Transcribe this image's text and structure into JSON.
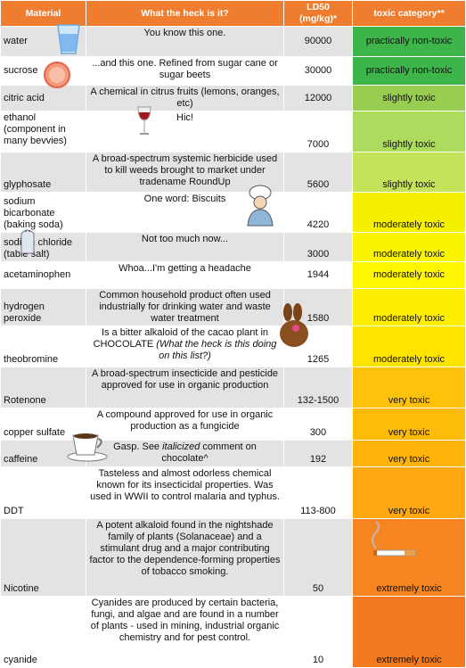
{
  "header": [
    "Material",
    "What the heck is it?",
    "LD50 (mg/kg)*",
    "toxic category**"
  ],
  "rows": [
    {
      "material": "water",
      "description": [
        {
          "text": "You know this one."
        }
      ],
      "ld50": 90000,
      "category": "practically non-toxic",
      "color": "#3db54a"
    },
    {
      "material": "sucrose",
      "description": [
        {
          "text": "...and this one. Refined from sugar cane or sugar beets"
        }
      ],
      "ld50": 30000,
      "category": "practically non-toxic",
      "color": "#3db54a"
    },
    {
      "material": "citric acid",
      "description": [
        {
          "text": "A chemical in citrus fruits (lemons, oranges, etc)"
        }
      ],
      "ld50": 12000,
      "category": "slightly toxic",
      "color": "#98cd52"
    },
    {
      "material": "ethanol (component in many bevvies)",
      "description": [
        {
          "text": "Hic!"
        }
      ],
      "ld50": 7000,
      "category": "slightly toxic",
      "color": "#addb5e"
    },
    {
      "material": "glyphosate",
      "description": [
        {
          "text": "A broad-spectrum systemic herbicide used to kill weeds brought to market under tradename RoundUp"
        }
      ],
      "ld50": 5600,
      "category": "slightly toxic",
      "color": "#c4e25a"
    },
    {
      "material": "sodium bicarbonate (baking soda)",
      "description": [
        {
          "text": "One word: Biscuits"
        }
      ],
      "ld50": 4220,
      "category": "moderately toxic",
      "color": "#f4f000"
    },
    {
      "material": "sodium chloride (table salt)",
      "description": [
        {
          "text": "Not too much now..."
        }
      ],
      "ld50": 3000,
      "category": "moderately toxic",
      "color": "#fbf400"
    },
    {
      "material": "acetaminophen",
      "description": [
        {
          "text": "Whoa...I'm getting a headache"
        }
      ],
      "ld50": 1944,
      "category": "moderately toxic",
      "color": "#fff600"
    },
    {
      "material": "hydrogen peroxide",
      "description": [
        {
          "text": "Common household product often used industrially for drinking water and waste water treatment"
        }
      ],
      "ld50": 1580,
      "category": "moderately toxic",
      "color": "#ffee00"
    },
    {
      "material": "theobromine",
      "description": [
        {
          "text": "Is a bitter alkaloid of the cacao plant in CHOCOLATE "
        },
        {
          "text": "(What the heck is this doing on this list?)",
          "italic": true
        }
      ],
      "ld50": 1265,
      "category": "moderately toxic",
      "color": "#ffe400"
    },
    {
      "material": "Rotenone",
      "description": [
        {
          "text": "A broad-spectrum insecticide and pesticide approved for use in organic production"
        }
      ],
      "ld50": "132-1500",
      "category": "very toxic",
      "color": "#ffc20a"
    },
    {
      "material": "copper sulfate",
      "description": [
        {
          "text": "A compound approved for use in organic production as a fungicide"
        }
      ],
      "ld50": 300,
      "category": "very toxic",
      "color": "#ffbb0a"
    },
    {
      "material": "caffeine",
      "description": [
        {
          "text": "Gasp. See "
        },
        {
          "text": "italicized",
          "italic": true
        },
        {
          "text": " comment on chocolate^"
        }
      ],
      "ld50": 192,
      "category": "very toxic",
      "color": "#ffb40c"
    },
    {
      "material": "DDT",
      "description": [
        {
          "text": "Tasteless and almost odorless chemical known for its insecticidal properties. Was used in WWII to control malaria and typhus."
        }
      ],
      "ld50": "113-800",
      "category": "very toxic",
      "color": "#ffa812"
    },
    {
      "material": "Nicotine",
      "description": [
        {
          "text": "A potent alkaloid found in the nightshade family of plants (Solanaceae) and a stimulant drug and a major contributing factor to the dependence-forming properties of tobacco smoking."
        }
      ],
      "ld50": 50,
      "category": "extremely toxic",
      "color": "#f68420"
    },
    {
      "material": "cyanide",
      "description": [
        {
          "text": "Cyanides are produced by certain bacteria, fungi, and algae and are found in a number of plants - used in mining, industrial organic chemistry and for pest control."
        }
      ],
      "ld50": 10,
      "category": "extremely toxic",
      "color": "#f47a20"
    }
  ]
}
